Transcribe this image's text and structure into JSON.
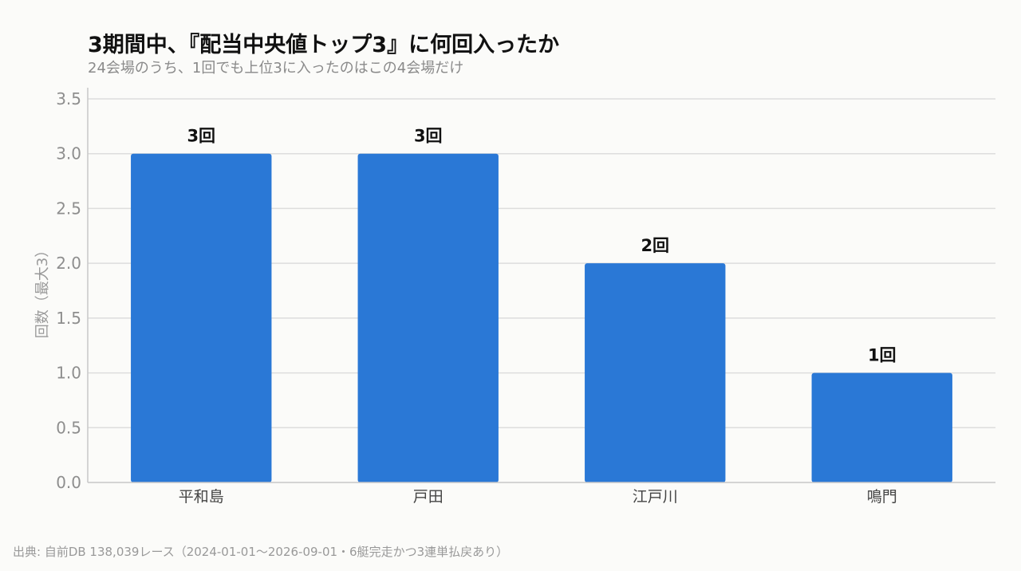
{
  "header": {
    "title": "3期間中、『配当中央値トップ3』に何回入ったか",
    "subtitle": "24会場のうち、1回でも上位3に入ったのはこの4会場だけ"
  },
  "footer": {
    "source": "出典: 自前DB 138,039レース（2024-01-01〜2026-09-01・6艇完走かつ3連単払戻あり）"
  },
  "chart_data": {
    "type": "bar",
    "title": "3期間中、『配当中央値トップ3』に何回入ったか",
    "subtitle": "24会場のうち、1回でも上位3に入ったのはこの4会場だけ",
    "categories": [
      "平和島",
      "戸田",
      "江戸川",
      "鳴門"
    ],
    "values": [
      3,
      3,
      2,
      1
    ],
    "data_labels": [
      "3回",
      "3回",
      "2回",
      "1回"
    ],
    "xlabel": "",
    "ylabel": "回数（最大3）",
    "ylim": [
      0,
      3.5
    ],
    "yticks": [
      "0.0",
      "0.5",
      "1.0",
      "1.5",
      "2.0",
      "2.5",
      "3.0",
      "3.5"
    ],
    "grid": true,
    "bar_color": "#2a78d6"
  }
}
